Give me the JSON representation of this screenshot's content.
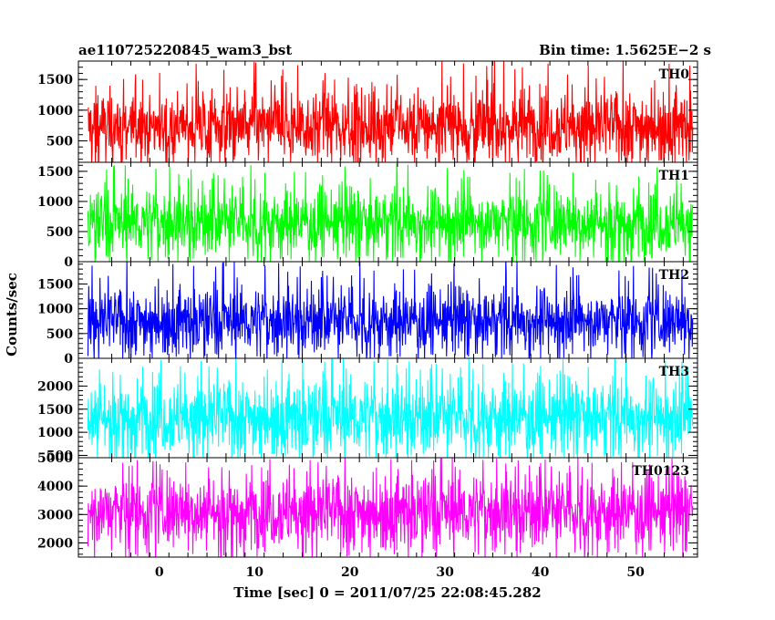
{
  "figure": {
    "title_left": "ae110725220845_wam3_bst",
    "title_right": "Bin time: 1.5625E−2 s",
    "xlabel": "Time [sec] 0 = 2011/07/25 22:08:45.282",
    "ylabel": "Counts/sec"
  },
  "chart_data": {
    "type": "line",
    "bin_time_s": 0.015625,
    "xlim": [
      -8.5,
      56.5
    ],
    "data_x_range": [
      -7.5,
      56.0
    ],
    "x_ticks": [
      0,
      10,
      20,
      30,
      40,
      50
    ],
    "x_tick_labels": [
      "0",
      "10",
      "20",
      "30",
      "40",
      "50"
    ],
    "panels": [
      {
        "name": "TH0",
        "color": "#ff0000",
        "ylim": [
          150,
          1800
        ],
        "y_ticks": [
          500,
          1000,
          1500
        ],
        "y_tick_labels": [
          "500",
          "1000",
          "1500"
        ],
        "typical_range": [
          150,
          1350
        ],
        "mean": 750,
        "peak": 1800
      },
      {
        "name": "TH1",
        "color": "#00ff00",
        "ylim": [
          0,
          1650
        ],
        "y_ticks": [
          0,
          500,
          1000,
          1500
        ],
        "y_tick_labels": [
          "0",
          "500",
          "1000",
          "1500"
        ],
        "typical_range": [
          100,
          1250
        ],
        "mean": 650,
        "peak": 1600
      },
      {
        "name": "TH2",
        "color": "#0000ff",
        "ylim": [
          0,
          1950
        ],
        "y_ticks": [
          0,
          500,
          1000,
          1500
        ],
        "y_tick_labels": [
          "0",
          "500",
          "1000",
          "1500"
        ],
        "typical_range": [
          100,
          1450
        ],
        "mean": 750,
        "peak": 1950
      },
      {
        "name": "TH3",
        "color": "#00ffff",
        "ylim": [
          450,
          2600
        ],
        "y_ticks": [
          500,
          1000,
          1500,
          2000
        ],
        "y_tick_labels": [
          "500",
          "1000",
          "1500",
          "2000"
        ],
        "typical_range": [
          550,
          2250
        ],
        "mean": 1300,
        "peak": 2600
      },
      {
        "name": "TH0123",
        "color": "#ff00ff",
        "ylim": [
          1500,
          5000
        ],
        "y_ticks": [
          2000,
          3000,
          4000,
          5000
        ],
        "y_tick_labels": [
          "2000",
          "3000",
          "4000",
          "5000"
        ],
        "typical_range": [
          1800,
          4500
        ],
        "mean": 3100,
        "peak": 5000
      }
    ]
  }
}
